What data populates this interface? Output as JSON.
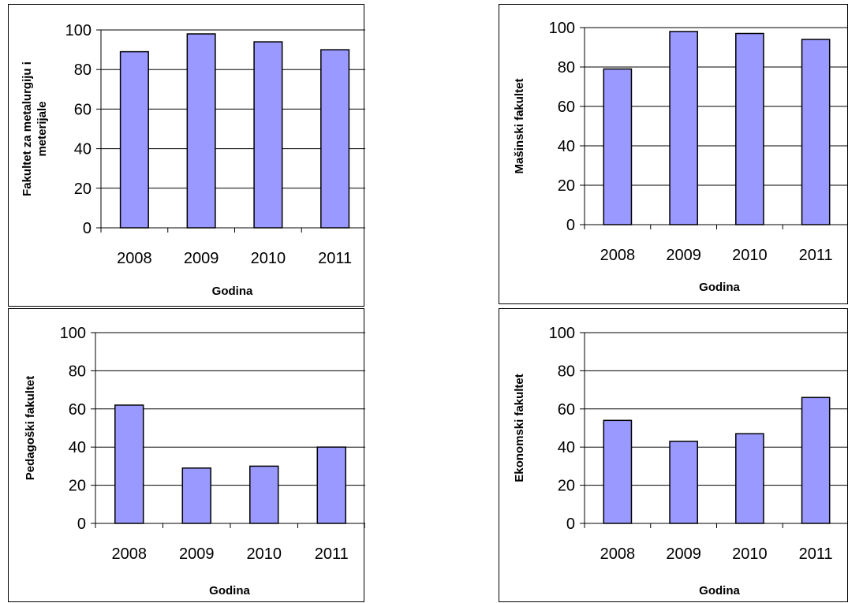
{
  "chart_data": [
    {
      "type": "bar",
      "categories": [
        "2008",
        "2009",
        "2010",
        "2011"
      ],
      "values": [
        89,
        98,
        94,
        90
      ],
      "xlabel": "Godina",
      "ylabel": [
        "Fakultet za metalurgiju i",
        "meterijale"
      ],
      "ylim": [
        0,
        100
      ],
      "yticks": [
        "0",
        "20",
        "40",
        "60",
        "80",
        "100"
      ],
      "grid": true,
      "bar_color": "#9999ff"
    },
    {
      "type": "bar",
      "categories": [
        "2008",
        "2009",
        "2010",
        "2011"
      ],
      "values": [
        79,
        98,
        97,
        94
      ],
      "xlabel": "Godina",
      "ylabel": [
        "Mašinski fakultet"
      ],
      "ylim": [
        0,
        100
      ],
      "yticks": [
        "0",
        "20",
        "40",
        "60",
        "80",
        "100"
      ],
      "grid": true,
      "bar_color": "#9999ff"
    },
    {
      "type": "bar",
      "categories": [
        "2008",
        "2009",
        "2010",
        "2011"
      ],
      "values": [
        62,
        29,
        30,
        40
      ],
      "xlabel": "Godina",
      "ylabel": [
        "Pedagoški fakultet"
      ],
      "ylim": [
        0,
        100
      ],
      "yticks": [
        "0",
        "20",
        "40",
        "60",
        "80",
        "100"
      ],
      "grid": true,
      "bar_color": "#9999ff"
    },
    {
      "type": "bar",
      "categories": [
        "2008",
        "2009",
        "2010",
        "2011"
      ],
      "values": [
        54,
        43,
        47,
        66
      ],
      "xlabel": "Godina",
      "ylabel": [
        "Ekonomski fakultet"
      ],
      "ylim": [
        0,
        100
      ],
      "yticks": [
        "0",
        "20",
        "40",
        "60",
        "80",
        "100"
      ],
      "grid": true,
      "bar_color": "#9999ff"
    }
  ]
}
